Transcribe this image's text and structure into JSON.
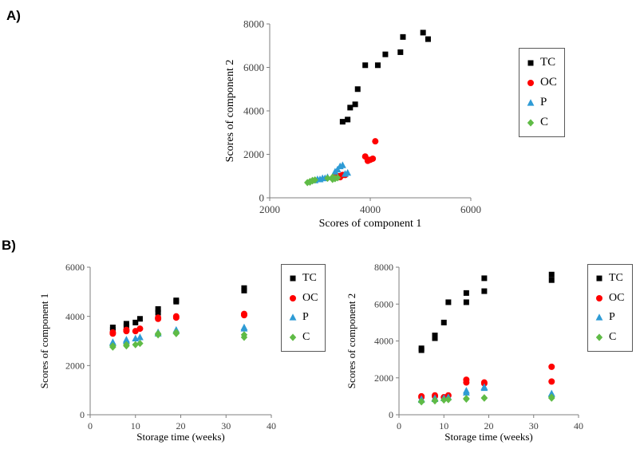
{
  "panel_a": {
    "label": "A)"
  },
  "panel_b": {
    "label": "B)"
  },
  "colors": {
    "tc": "#000000",
    "oc": "#FF0000",
    "p": "#2E9BD5",
    "c": "#5FBB46"
  },
  "chart_data": [
    {
      "id": "panelA",
      "type": "scatter",
      "title": "",
      "xlabel": "Scores of component 1",
      "ylabel": "Scores of component 2",
      "xlim": [
        2000,
        6000
      ],
      "xticks": [
        2000,
        4000,
        6000
      ],
      "ylim": [
        0,
        8000
      ],
      "yticks": [
        0,
        2000,
        4000,
        6000,
        8000
      ],
      "grid": false,
      "legend_position": "right",
      "series": [
        {
          "name": "TC",
          "marker": "square",
          "color": "#000000",
          "points": [
            [
              3450,
              3500
            ],
            [
              3550,
              3600
            ],
            [
              3600,
              4150
            ],
            [
              3700,
              4300
            ],
            [
              3750,
              5000
            ],
            [
              3900,
              6100
            ],
            [
              4150,
              6100
            ],
            [
              4300,
              6600
            ],
            [
              4600,
              6700
            ],
            [
              4650,
              7400
            ],
            [
              5050,
              7600
            ],
            [
              5150,
              7300
            ]
          ]
        },
        {
          "name": "OC",
          "marker": "circle",
          "color": "#FF0000",
          "points": [
            [
              3300,
              950
            ],
            [
              3350,
              1000
            ],
            [
              3400,
              1000
            ],
            [
              3450,
              1050
            ],
            [
              3400,
              950
            ],
            [
              3500,
              1050
            ],
            [
              3900,
              1900
            ],
            [
              3950,
              1750
            ],
            [
              3950,
              1700
            ],
            [
              4000,
              1750
            ],
            [
              4100,
              2600
            ],
            [
              4050,
              1800
            ]
          ]
        },
        {
          "name": "P",
          "marker": "triangle",
          "color": "#2E9BD5",
          "points": [
            [
              2900,
              800
            ],
            [
              2950,
              850
            ],
            [
              3000,
              850
            ],
            [
              3050,
              900
            ],
            [
              3100,
              900
            ],
            [
              3150,
              950
            ],
            [
              3300,
              1200
            ],
            [
              3350,
              1300
            ],
            [
              3400,
              1450
            ],
            [
              3450,
              1500
            ],
            [
              3500,
              1100
            ],
            [
              3550,
              1150
            ]
          ]
        },
        {
          "name": "C",
          "marker": "diamond",
          "color": "#5FBB46",
          "points": [
            [
              2750,
              700
            ],
            [
              2800,
              720
            ],
            [
              2800,
              750
            ],
            [
              2850,
              780
            ],
            [
              2850,
              800
            ],
            [
              2900,
              820
            ],
            [
              3250,
              850
            ],
            [
              3300,
              880
            ],
            [
              3300,
              900
            ],
            [
              3350,
              920
            ],
            [
              3150,
              900
            ],
            [
              3250,
              950
            ]
          ]
        }
      ]
    },
    {
      "id": "panelB_left",
      "type": "scatter",
      "title": "",
      "xlabel": "Storage time (weeks)",
      "ylabel": "Scores of component 1",
      "xlim": [
        0,
        40
      ],
      "xticks": [
        0,
        10,
        20,
        30,
        40
      ],
      "ylim": [
        0,
        6000
      ],
      "yticks": [
        0,
        2000,
        4000,
        6000
      ],
      "grid": false,
      "legend_position": "right",
      "series": [
        {
          "name": "TC",
          "marker": "square",
          "color": "#000000",
          "points": [
            [
              5,
              3450
            ],
            [
              5,
              3550
            ],
            [
              8,
              3600
            ],
            [
              8,
              3700
            ],
            [
              10,
              3750
            ],
            [
              11,
              3900
            ],
            [
              15,
              4150
            ],
            [
              15,
              4300
            ],
            [
              19,
              4600
            ],
            [
              19,
              4650
            ],
            [
              34,
              5050
            ],
            [
              34,
              5150
            ]
          ]
        },
        {
          "name": "OC",
          "marker": "circle",
          "color": "#FF0000",
          "points": [
            [
              5,
              3300
            ],
            [
              5,
              3350
            ],
            [
              8,
              3400
            ],
            [
              8,
              3450
            ],
            [
              10,
              3400
            ],
            [
              11,
              3500
            ],
            [
              15,
              3900
            ],
            [
              15,
              3950
            ],
            [
              19,
              3950
            ],
            [
              19,
              4000
            ],
            [
              34,
              4100
            ],
            [
              34,
              4050
            ]
          ]
        },
        {
          "name": "P",
          "marker": "triangle",
          "color": "#2E9BD5",
          "points": [
            [
              5,
              2900
            ],
            [
              5,
              2950
            ],
            [
              8,
              3000
            ],
            [
              8,
              3050
            ],
            [
              10,
              3100
            ],
            [
              11,
              3150
            ],
            [
              15,
              3300
            ],
            [
              15,
              3350
            ],
            [
              19,
              3400
            ],
            [
              19,
              3450
            ],
            [
              34,
              3500
            ],
            [
              34,
              3550
            ]
          ]
        },
        {
          "name": "C",
          "marker": "diamond",
          "color": "#5FBB46",
          "points": [
            [
              5,
              2750
            ],
            [
              5,
              2800
            ],
            [
              8,
              2800
            ],
            [
              8,
              2850
            ],
            [
              10,
              2850
            ],
            [
              11,
              2900
            ],
            [
              15,
              3250
            ],
            [
              15,
              3300
            ],
            [
              19,
              3300
            ],
            [
              19,
              3350
            ],
            [
              34,
              3150
            ],
            [
              34,
              3250
            ]
          ]
        }
      ]
    },
    {
      "id": "panelB_right",
      "type": "scatter",
      "title": "",
      "xlabel": "Storage time (weeks)",
      "ylabel": "Scores of component 2",
      "xlim": [
        0,
        40
      ],
      "xticks": [
        0,
        10,
        20,
        30,
        40
      ],
      "ylim": [
        0,
        8000
      ],
      "yticks": [
        0,
        2000,
        4000,
        6000,
        8000
      ],
      "grid": false,
      "legend_position": "right",
      "series": [
        {
          "name": "TC",
          "marker": "square",
          "color": "#000000",
          "points": [
            [
              5,
              3500
            ],
            [
              5,
              3600
            ],
            [
              8,
              4150
            ],
            [
              8,
              4300
            ],
            [
              10,
              5000
            ],
            [
              11,
              6100
            ],
            [
              15,
              6100
            ],
            [
              15,
              6600
            ],
            [
              19,
              6700
            ],
            [
              19,
              7400
            ],
            [
              34,
              7600
            ],
            [
              34,
              7300
            ]
          ]
        },
        {
          "name": "OC",
          "marker": "circle",
          "color": "#FF0000",
          "points": [
            [
              5,
              950
            ],
            [
              5,
              1000
            ],
            [
              8,
              1000
            ],
            [
              8,
              1050
            ],
            [
              10,
              950
            ],
            [
              11,
              1050
            ],
            [
              15,
              1900
            ],
            [
              15,
              1750
            ],
            [
              19,
              1700
            ],
            [
              19,
              1750
            ],
            [
              34,
              2600
            ],
            [
              34,
              1800
            ]
          ]
        },
        {
          "name": "P",
          "marker": "triangle",
          "color": "#2E9BD5",
          "points": [
            [
              5,
              800
            ],
            [
              5,
              850
            ],
            [
              8,
              850
            ],
            [
              8,
              900
            ],
            [
              10,
              900
            ],
            [
              11,
              950
            ],
            [
              15,
              1200
            ],
            [
              15,
              1300
            ],
            [
              19,
              1450
            ],
            [
              19,
              1500
            ],
            [
              34,
              1100
            ],
            [
              34,
              1150
            ]
          ]
        },
        {
          "name": "C",
          "marker": "diamond",
          "color": "#5FBB46",
          "points": [
            [
              5,
              700
            ],
            [
              5,
              720
            ],
            [
              8,
              750
            ],
            [
              8,
              780
            ],
            [
              10,
              800
            ],
            [
              11,
              820
            ],
            [
              15,
              850
            ],
            [
              15,
              880
            ],
            [
              19,
              900
            ],
            [
              19,
              920
            ],
            [
              34,
              900
            ],
            [
              34,
              950
            ]
          ]
        }
      ]
    }
  ]
}
